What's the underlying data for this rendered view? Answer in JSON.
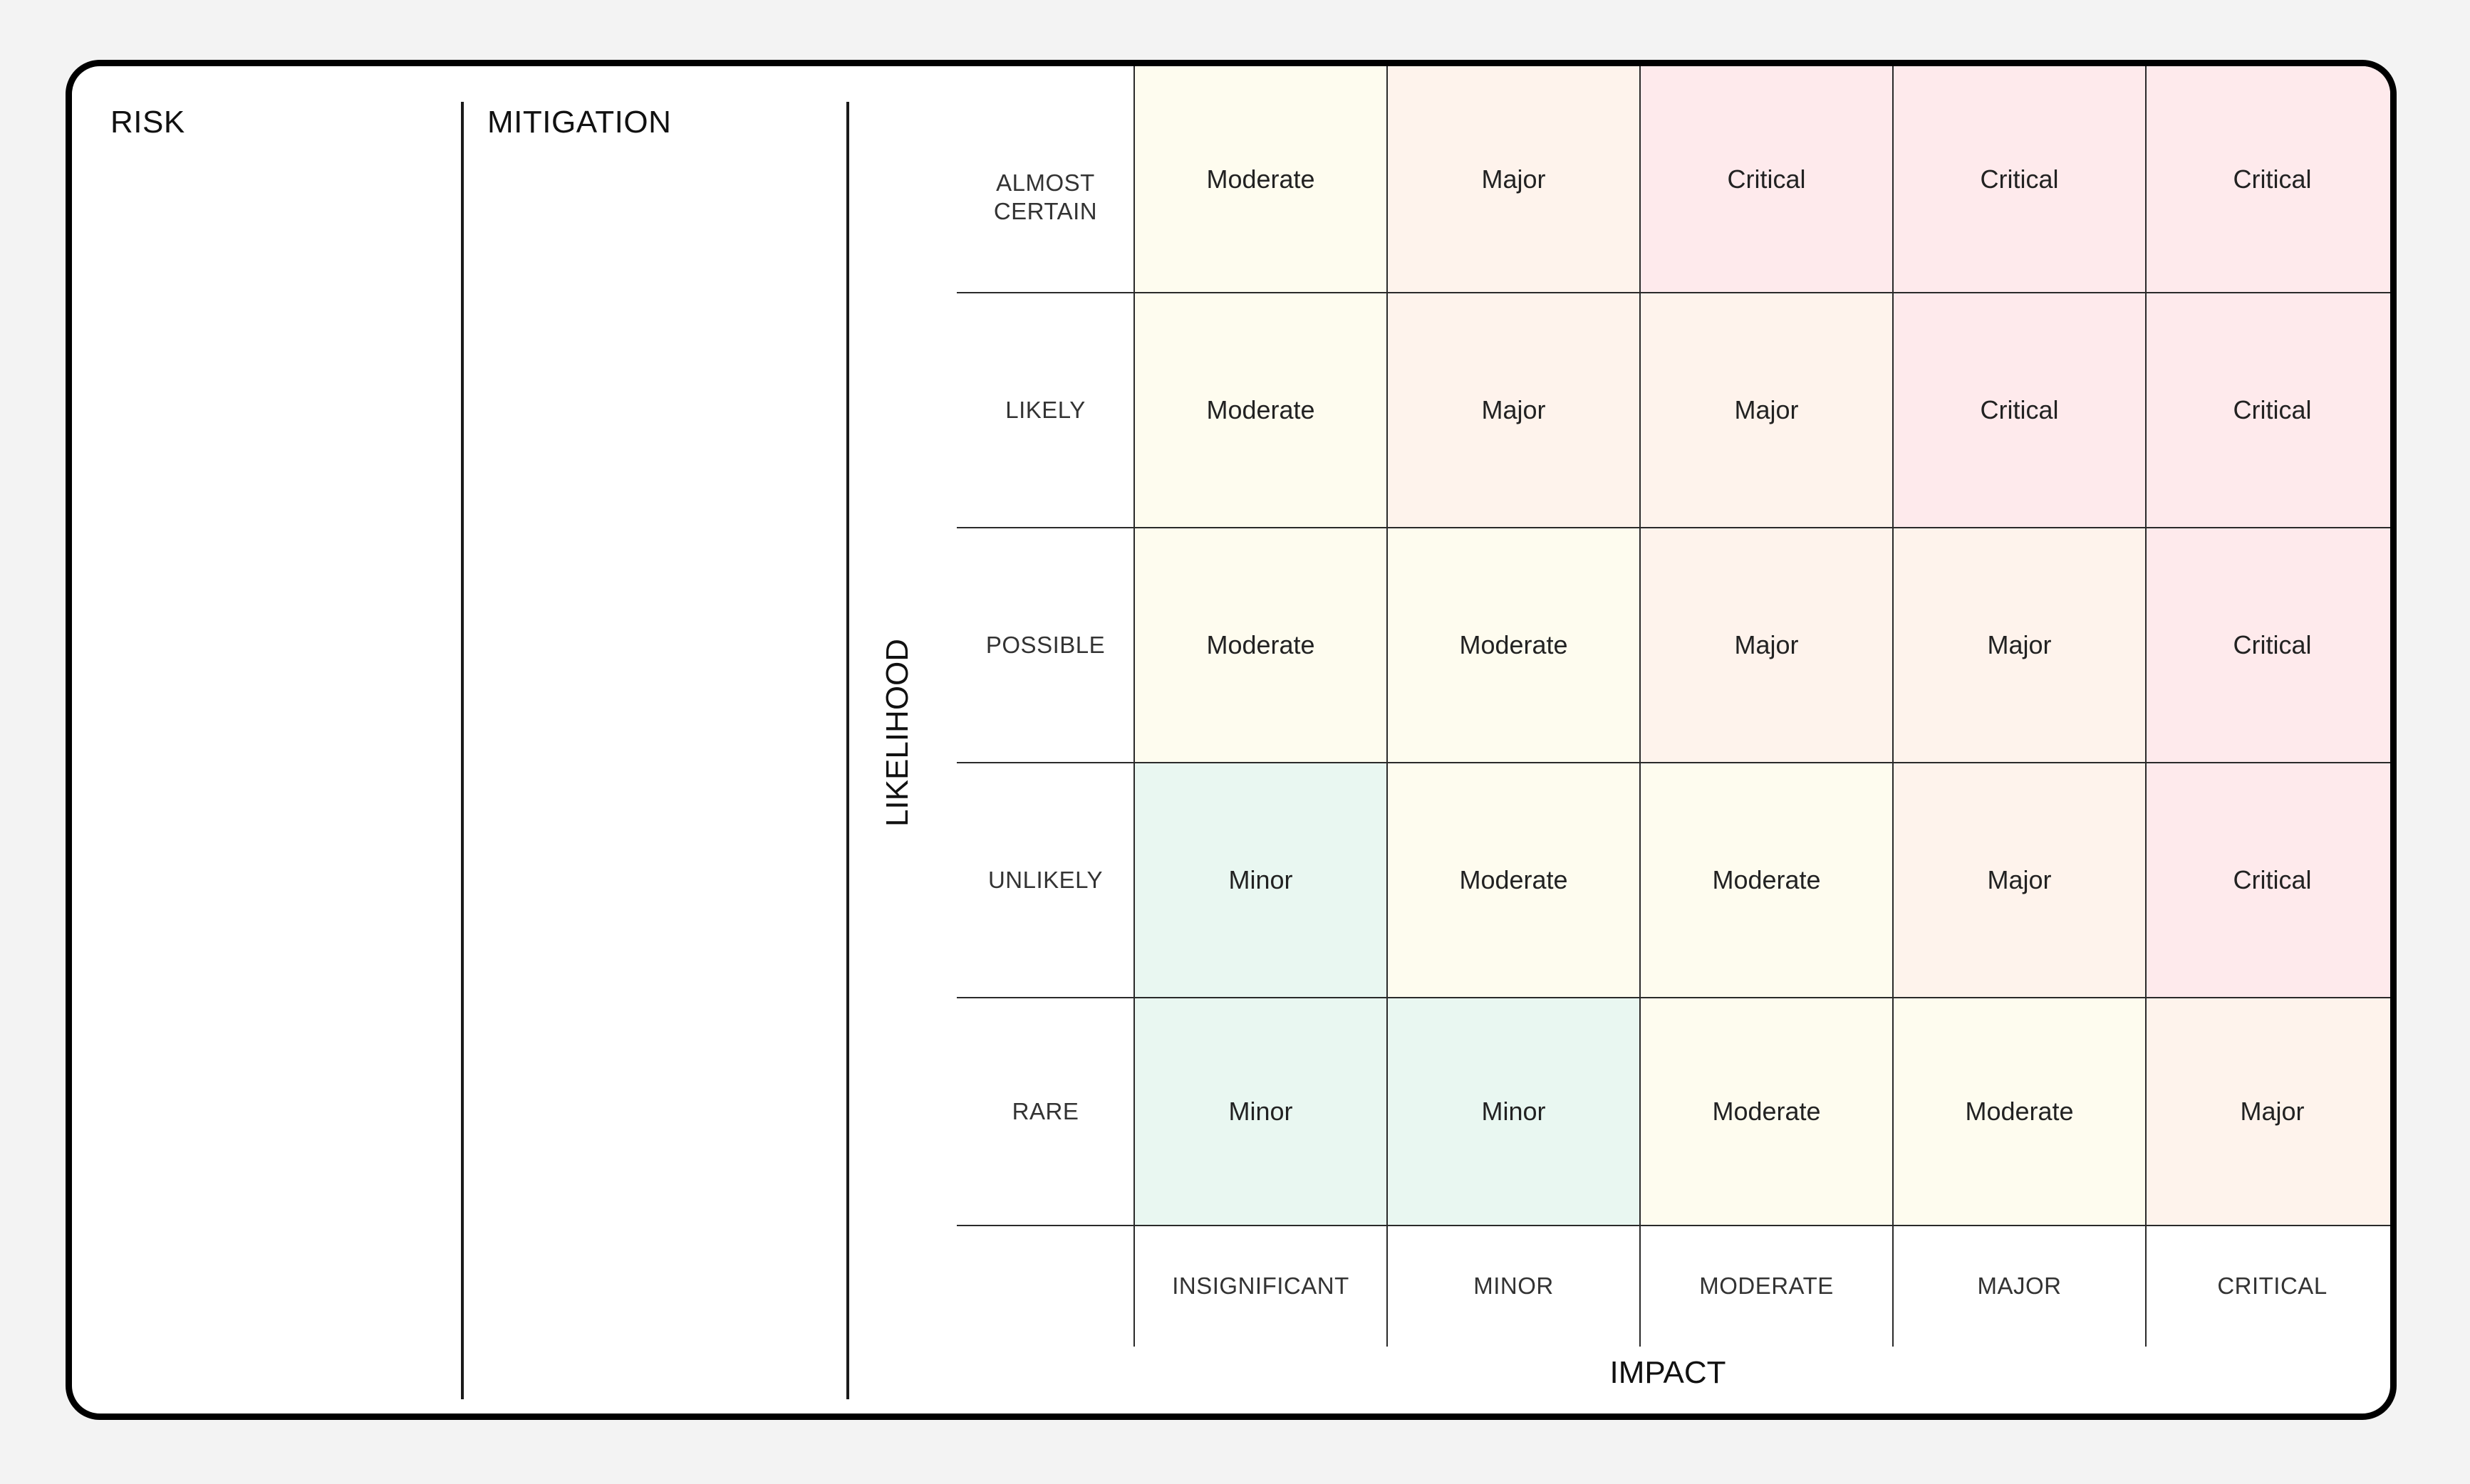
{
  "headers": {
    "risk": "RISK",
    "mitigation": "MITIGATION"
  },
  "axes": {
    "likelihood": "LIKELIHOOD",
    "impact": "IMPACT"
  },
  "colors": {
    "Minor": "#e9f7f1",
    "Moderate": "#fefcef",
    "Major": "#fef3ec",
    "Critical": "#feeaec"
  },
  "chart_data": {
    "type": "heatmap",
    "x_categories": [
      "INSIGNIFICANT",
      "MINOR",
      "MODERATE",
      "MAJOR",
      "CRITICAL"
    ],
    "y_categories": [
      "ALMOST\nCERTAIN",
      "LIKELY",
      "POSSIBLE",
      "UNLIKELY",
      "RARE"
    ],
    "values": [
      [
        "Moderate",
        "Major",
        "Critical",
        "Critical",
        "Critical"
      ],
      [
        "Moderate",
        "Major",
        "Major",
        "Critical",
        "Critical"
      ],
      [
        "Moderate",
        "Moderate",
        "Major",
        "Major",
        "Critical"
      ],
      [
        "Minor",
        "Moderate",
        "Moderate",
        "Major",
        "Critical"
      ],
      [
        "Minor",
        "Minor",
        "Moderate",
        "Moderate",
        "Major"
      ]
    ]
  }
}
